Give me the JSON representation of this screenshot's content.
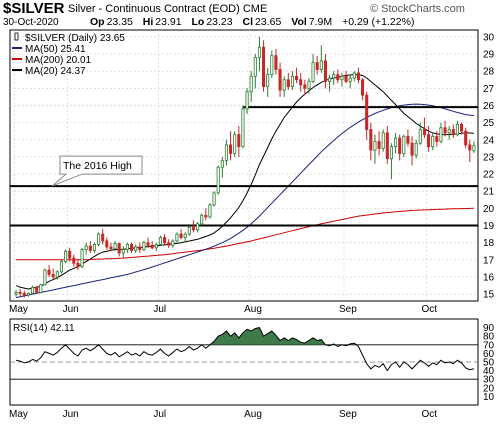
{
  "header": {
    "symbol": "$SILVER",
    "description": "Silver - Continuous Contract (EOD)",
    "exchange": "CME",
    "date": "30-Oct-2020",
    "open_label": "Op",
    "open": "23.35",
    "high_label": "Hi",
    "high": "23.91",
    "low_label": "Lo",
    "low": "23.23",
    "close_label": "Cl",
    "close": "23.65",
    "volume_label": "Vol",
    "volume": "7.9M",
    "change": "+0.29 (+1.22%)",
    "watermark": "© StockCharts.com"
  },
  "colors": {
    "up": "#2e7d32",
    "down": "#c62828",
    "ma50": "#1a237e",
    "ma200": "#cc0000",
    "ma20": "#000000",
    "rsi_fill": "#3f7a4a",
    "grid": "#cccccc"
  },
  "chart_data": [
    {
      "type": "candlestick",
      "legend_placement": "top-left",
      "grid": true,
      "ylim": [
        14.6,
        30.4
      ],
      "y_ticks": [
        15,
        16,
        17,
        18,
        19,
        20,
        21,
        22,
        23,
        24,
        25,
        26,
        27,
        28,
        29,
        30
      ],
      "x_ticks": [
        "May",
        "Jun",
        "Jul",
        "Aug",
        "Sep",
        "Oct"
      ],
      "series": [
        {
          "name": "$SILVER (Daily) 23.65",
          "kind": "candles"
        },
        {
          "name": "MA(50) 25.41",
          "kind": "line"
        },
        {
          "name": "MA(200) 20.01",
          "kind": "line"
        },
        {
          "name": "MA(20) 24.37",
          "kind": "line"
        }
      ],
      "candles": [
        [
          15.0,
          15.25,
          14.85,
          15.1
        ],
        [
          15.1,
          15.3,
          14.9,
          15.05
        ],
        [
          15.05,
          15.2,
          14.8,
          14.95
        ],
        [
          14.95,
          15.1,
          14.85,
          15.05
        ],
        [
          15.05,
          15.5,
          15.0,
          15.4
        ],
        [
          15.4,
          15.5,
          15.05,
          15.1
        ],
        [
          15.1,
          15.6,
          15.05,
          15.55
        ],
        [
          15.55,
          16.5,
          15.5,
          16.4
        ],
        [
          16.4,
          16.7,
          16.0,
          16.15
        ],
        [
          16.15,
          16.5,
          15.9,
          16.0
        ],
        [
          16.0,
          16.4,
          15.85,
          16.3
        ],
        [
          16.3,
          17.0,
          16.2,
          16.9
        ],
        [
          16.9,
          17.6,
          16.8,
          17.5
        ],
        [
          17.5,
          17.7,
          16.9,
          17.1
        ],
        [
          17.1,
          17.3,
          16.6,
          16.8
        ],
        [
          16.8,
          17.0,
          16.4,
          16.6
        ],
        [
          16.6,
          17.7,
          16.5,
          17.6
        ],
        [
          17.6,
          18.0,
          17.3,
          17.8
        ],
        [
          17.8,
          18.1,
          17.4,
          17.55
        ],
        [
          17.55,
          18.0,
          17.4,
          17.9
        ],
        [
          17.9,
          18.6,
          17.8,
          18.5
        ],
        [
          18.5,
          18.8,
          17.9,
          18.1
        ],
        [
          18.1,
          18.3,
          17.6,
          17.75
        ],
        [
          17.75,
          18.0,
          17.5,
          17.65
        ],
        [
          17.65,
          18.1,
          17.5,
          17.95
        ],
        [
          17.95,
          18.0,
          17.2,
          17.4
        ],
        [
          17.4,
          17.8,
          17.1,
          17.6
        ],
        [
          17.6,
          18.0,
          17.4,
          17.9
        ],
        [
          17.9,
          18.0,
          17.4,
          17.55
        ],
        [
          17.55,
          17.9,
          17.4,
          17.75
        ],
        [
          17.75,
          18.0,
          17.4,
          17.6
        ],
        [
          17.6,
          18.1,
          17.5,
          18.0
        ],
        [
          18.0,
          18.3,
          17.7,
          17.85
        ],
        [
          17.85,
          18.1,
          17.6,
          17.7
        ],
        [
          17.7,
          18.0,
          17.5,
          17.9
        ],
        [
          17.9,
          18.4,
          17.8,
          18.3
        ],
        [
          18.3,
          18.5,
          17.9,
          18.0
        ],
        [
          18.0,
          18.2,
          17.7,
          17.85
        ],
        [
          17.85,
          18.2,
          17.7,
          18.1
        ],
        [
          18.1,
          18.6,
          18.0,
          18.5
        ],
        [
          18.5,
          18.8,
          18.2,
          18.3
        ],
        [
          18.3,
          18.6,
          18.0,
          18.5
        ],
        [
          18.5,
          19.0,
          18.4,
          18.9
        ],
        [
          18.9,
          19.3,
          18.6,
          18.75
        ],
        [
          18.75,
          19.2,
          18.6,
          19.1
        ],
        [
          19.1,
          19.7,
          19.0,
          19.6
        ],
        [
          19.6,
          20.0,
          19.3,
          19.5
        ],
        [
          19.5,
          20.3,
          19.4,
          20.2
        ],
        [
          20.2,
          21.0,
          20.1,
          20.9
        ],
        [
          20.9,
          22.5,
          20.8,
          22.4
        ],
        [
          22.4,
          23.0,
          21.8,
          22.8
        ],
        [
          22.8,
          24.0,
          22.5,
          23.7
        ],
        [
          23.7,
          24.5,
          22.8,
          23.2
        ],
        [
          23.2,
          24.5,
          23.0,
          24.3
        ],
        [
          24.3,
          24.8,
          23.0,
          23.6
        ],
        [
          23.6,
          26.0,
          23.5,
          25.8
        ],
        [
          25.8,
          27.0,
          25.5,
          26.8
        ],
        [
          26.8,
          28.0,
          26.2,
          27.7
        ],
        [
          27.7,
          29.0,
          27.0,
          28.8
        ],
        [
          28.8,
          30.0,
          28.0,
          29.4
        ],
        [
          29.4,
          29.8,
          26.8,
          27.1
        ],
        [
          27.1,
          28.2,
          26.5,
          27.8
        ],
        [
          27.8,
          29.2,
          27.6,
          28.9
        ],
        [
          28.9,
          29.3,
          27.8,
          28.1
        ],
        [
          28.1,
          28.5,
          26.5,
          26.9
        ],
        [
          26.9,
          27.7,
          26.5,
          27.5
        ],
        [
          27.5,
          27.9,
          26.9,
          27.1
        ],
        [
          27.1,
          28.0,
          26.9,
          27.7
        ],
        [
          27.7,
          28.2,
          27.3,
          27.5
        ],
        [
          27.5,
          27.9,
          26.8,
          27.2
        ],
        [
          27.2,
          27.5,
          26.6,
          27.0
        ],
        [
          27.0,
          27.6,
          26.7,
          27.4
        ],
        [
          27.4,
          29.0,
          27.3,
          28.5
        ],
        [
          28.5,
          28.9,
          27.8,
          28.1
        ],
        [
          28.1,
          29.5,
          27.9,
          28.6
        ],
        [
          28.6,
          29.0,
          27.0,
          27.4
        ],
        [
          27.4,
          27.8,
          26.8,
          27.6
        ],
        [
          27.6,
          28.0,
          27.2,
          27.8
        ],
        [
          27.8,
          28.1,
          27.3,
          27.5
        ],
        [
          27.5,
          27.9,
          27.1,
          27.7
        ],
        [
          27.7,
          28.0,
          27.3,
          27.4
        ],
        [
          27.4,
          27.8,
          27.0,
          27.6
        ],
        [
          27.6,
          28.0,
          27.4,
          27.9
        ],
        [
          27.9,
          28.2,
          27.3,
          27.5
        ],
        [
          27.5,
          27.6,
          26.3,
          26.6
        ],
        [
          26.6,
          26.8,
          24.0,
          24.6
        ],
        [
          24.6,
          25.0,
          22.8,
          23.4
        ],
        [
          23.4,
          24.3,
          22.6,
          23.9
        ],
        [
          23.9,
          24.5,
          23.1,
          23.5
        ],
        [
          23.5,
          24.6,
          23.3,
          24.4
        ],
        [
          24.4,
          24.8,
          22.6,
          22.9
        ],
        [
          22.9,
          23.8,
          21.7,
          23.6
        ],
        [
          23.6,
          24.4,
          23.2,
          24.1
        ],
        [
          24.1,
          24.3,
          22.8,
          23.2
        ],
        [
          23.2,
          24.3,
          23.0,
          24.2
        ],
        [
          24.2,
          24.6,
          23.6,
          23.8
        ],
        [
          23.8,
          24.2,
          22.5,
          23.1
        ],
        [
          23.1,
          24.0,
          22.9,
          23.8
        ],
        [
          23.8,
          25.0,
          23.7,
          24.6
        ],
        [
          24.6,
          25.3,
          24.1,
          24.3
        ],
        [
          24.3,
          24.8,
          23.3,
          23.6
        ],
        [
          23.6,
          24.4,
          23.4,
          24.2
        ],
        [
          24.2,
          24.5,
          23.6,
          23.9
        ],
        [
          23.9,
          25.0,
          23.8,
          24.7
        ],
        [
          24.7,
          25.1,
          24.2,
          24.4
        ],
        [
          24.4,
          24.8,
          24.0,
          24.6
        ],
        [
          24.6,
          24.9,
          24.1,
          24.3
        ],
        [
          24.3,
          25.1,
          24.2,
          24.9
        ],
        [
          24.9,
          25.0,
          24.3,
          24.5
        ],
        [
          24.5,
          24.7,
          23.5,
          23.7
        ],
        [
          23.7,
          24.0,
          22.7,
          23.4
        ],
        [
          23.35,
          23.91,
          23.23,
          23.65
        ]
      ],
      "ma20": [
        15.5,
        15.4,
        15.35,
        15.3,
        15.35,
        15.4,
        15.45,
        15.6,
        15.75,
        15.85,
        15.95,
        16.1,
        16.25,
        16.4,
        16.5,
        16.6,
        16.75,
        16.9,
        17.05,
        17.2,
        17.35,
        17.45,
        17.5,
        17.55,
        17.6,
        17.6,
        17.62,
        17.65,
        17.67,
        17.7,
        17.72,
        17.75,
        17.77,
        17.8,
        17.82,
        17.85,
        17.87,
        17.9,
        17.93,
        17.96,
        18.0,
        18.05,
        18.1,
        18.15,
        18.2,
        18.28,
        18.36,
        18.45,
        18.57,
        18.75,
        18.95,
        19.2,
        19.45,
        19.75,
        20.05,
        20.45,
        20.9,
        21.4,
        21.95,
        22.55,
        23.05,
        23.55,
        24.05,
        24.5,
        24.9,
        25.3,
        25.6,
        25.9,
        26.2,
        26.45,
        26.65,
        26.85,
        27.05,
        27.2,
        27.35,
        27.45,
        27.55,
        27.6,
        27.65,
        27.7,
        27.75,
        27.78,
        27.8,
        27.8,
        27.75,
        27.6,
        27.4,
        27.2,
        27.0,
        26.8,
        26.55,
        26.3,
        26.05,
        25.8,
        25.55,
        25.35,
        25.15,
        24.95,
        24.8,
        24.65,
        24.5,
        24.4,
        24.35,
        24.3,
        24.3,
        24.3,
        24.32,
        24.35,
        24.38,
        24.4,
        24.4,
        24.37
      ],
      "ma50": [
        14.8,
        14.85,
        14.9,
        14.95,
        15.0,
        15.05,
        15.1,
        15.15,
        15.2,
        15.25,
        15.3,
        15.35,
        15.4,
        15.45,
        15.5,
        15.55,
        15.6,
        15.65,
        15.7,
        15.75,
        15.8,
        15.85,
        15.9,
        15.95,
        16.0,
        16.05,
        16.1,
        16.15,
        16.22,
        16.29,
        16.36,
        16.43,
        16.5,
        16.58,
        16.66,
        16.74,
        16.82,
        16.9,
        16.98,
        17.06,
        17.14,
        17.22,
        17.3,
        17.38,
        17.46,
        17.54,
        17.62,
        17.7,
        17.8,
        17.9,
        18.0,
        18.12,
        18.25,
        18.4,
        18.55,
        18.72,
        18.9,
        19.1,
        19.32,
        19.55,
        19.8,
        20.05,
        20.3,
        20.55,
        20.8,
        21.05,
        21.3,
        21.55,
        21.8,
        22.05,
        22.3,
        22.55,
        22.8,
        23.05,
        23.3,
        23.52,
        23.74,
        23.96,
        24.16,
        24.36,
        24.54,
        24.72,
        24.88,
        25.03,
        25.17,
        25.3,
        25.42,
        25.53,
        25.63,
        25.72,
        25.8,
        25.87,
        25.93,
        25.98,
        26.02,
        26.05,
        26.07,
        26.08,
        26.07,
        26.05,
        26.02,
        25.98,
        25.93,
        25.87,
        25.8,
        25.73,
        25.66,
        25.59,
        25.53,
        25.47,
        25.44,
        25.41
      ],
      "ma200": [
        17.0,
        17.0,
        17.0,
        17.0,
        17.0,
        17.0,
        17.0,
        17.0,
        17.0,
        17.0,
        17.0,
        17.0,
        17.0,
        17.0,
        17.0,
        17.0,
        17.0,
        17.01,
        17.02,
        17.03,
        17.04,
        17.05,
        17.06,
        17.07,
        17.08,
        17.09,
        17.1,
        17.12,
        17.14,
        17.16,
        17.18,
        17.2,
        17.22,
        17.24,
        17.26,
        17.28,
        17.3,
        17.33,
        17.36,
        17.39,
        17.42,
        17.45,
        17.48,
        17.51,
        17.54,
        17.57,
        17.6,
        17.64,
        17.68,
        17.72,
        17.76,
        17.8,
        17.85,
        17.9,
        17.95,
        18.0,
        18.05,
        18.1,
        18.16,
        18.22,
        18.28,
        18.34,
        18.4,
        18.46,
        18.52,
        18.58,
        18.64,
        18.7,
        18.76,
        18.82,
        18.88,
        18.94,
        19.0,
        19.05,
        19.1,
        19.15,
        19.2,
        19.25,
        19.3,
        19.35,
        19.4,
        19.45,
        19.5,
        19.55,
        19.58,
        19.61,
        19.64,
        19.67,
        19.7,
        19.73,
        19.76,
        19.78,
        19.8,
        19.82,
        19.84,
        19.86,
        19.88,
        19.89,
        19.9,
        19.91,
        19.92,
        19.93,
        19.94,
        19.95,
        19.96,
        19.97,
        19.98,
        19.98,
        19.99,
        19.99,
        20.0,
        20.01
      ],
      "resistance_levels": [
        21.3,
        19.0
      ],
      "annotation_segment": {
        "level": 25.9,
        "label": ""
      },
      "annotation": "The 2016 High",
      "annotation_level": 21.3
    },
    {
      "type": "line",
      "name": "RSI(14) 42.11",
      "ylim": [
        0,
        100
      ],
      "y_ticks": [
        10,
        20,
        30,
        40,
        50,
        60,
        70,
        80,
        90
      ],
      "reference_lines": [
        30,
        50,
        70
      ],
      "x_ticks": [
        "May",
        "Jun",
        "Jul",
        "Aug",
        "Sep",
        "Oct"
      ],
      "values": [
        52,
        51,
        49,
        50,
        53,
        51,
        55,
        62,
        60,
        58,
        61,
        66,
        70,
        65,
        60,
        57,
        64,
        66,
        63,
        66,
        70,
        65,
        60,
        58,
        61,
        56,
        59,
        62,
        58,
        60,
        57,
        62,
        59,
        58,
        61,
        65,
        60,
        57,
        61,
        65,
        62,
        64,
        68,
        64,
        66,
        70,
        66,
        70,
        74,
        80,
        82,
        86,
        80,
        84,
        78,
        84,
        88,
        86,
        89,
        90,
        80,
        83,
        86,
        81,
        75,
        78,
        75,
        78,
        76,
        73,
        72,
        75,
        78,
        75,
        76,
        70,
        69,
        71,
        68,
        70,
        69,
        71,
        72,
        68,
        58,
        48,
        42,
        46,
        44,
        48,
        40,
        47,
        50,
        44,
        50,
        47,
        42,
        47,
        52,
        49,
        45,
        49,
        47,
        52,
        49,
        50,
        48,
        52,
        49,
        43,
        41,
        42.11
      ]
    }
  ]
}
